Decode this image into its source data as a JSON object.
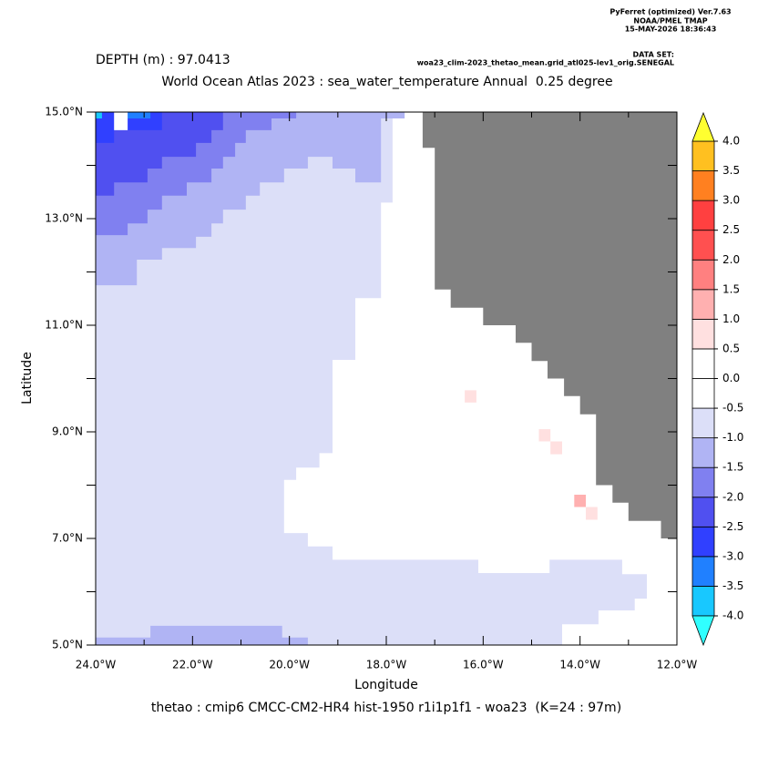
{
  "chart_data": {
    "type": "map",
    "header": [
      "PyFerret (optimized) Ver.7.63",
      "NOAA/PMEL TMAP",
      "15-MAY-2026 18:36:43"
    ],
    "dataset_label": "DATA SET:",
    "dataset": "woa23_clim-2023_thetao_mean.grid_atl025-lev1_orig.SENEGAL",
    "depth_label": "DEPTH (m) : 97.0413",
    "title": "World Ocean Atlas 2023 : sea_water_temperature Annual  0.25 degree",
    "xlabel": "Longitude",
    "ylabel": "Latitude",
    "footer": "thetao : cmip6 CMCC-CM2-HR4 hist-1950 r1i1p1f1 - woa23  (K=24 : 97m)",
    "xlim": [
      -24,
      -12
    ],
    "ylim": [
      5,
      15
    ],
    "xticks": [
      {
        "value": -24,
        "label": "24.0°W"
      },
      {
        "value": -22,
        "label": "22.0°W"
      },
      {
        "value": -20,
        "label": "20.0°W"
      },
      {
        "value": -18,
        "label": "18.0°W"
      },
      {
        "value": -16,
        "label": "16.0°W"
      },
      {
        "value": -14,
        "label": "14.0°W"
      },
      {
        "value": -12,
        "label": "12.0°W"
      }
    ],
    "xminorticks": [
      -23,
      -21,
      -19,
      -17,
      -15,
      -13
    ],
    "yticks": [
      {
        "value": 5,
        "label": "5.0°N"
      },
      {
        "value": 7,
        "label": "7.0°N"
      },
      {
        "value": 9,
        "label": "9.0°N"
      },
      {
        "value": 11,
        "label": "11.0°N"
      },
      {
        "value": 13,
        "label": "13.0°N"
      },
      {
        "value": 15,
        "label": "15.0°N"
      }
    ],
    "yminorticks": [
      6,
      8,
      10,
      12,
      14
    ],
    "colorbar": {
      "levels": [
        {
          "value": -4,
          "label": "-4.0"
        },
        {
          "value": -3.5,
          "label": "-3.5"
        },
        {
          "value": -3,
          "label": "-3.0"
        },
        {
          "value": -2.5,
          "label": "-2.5"
        },
        {
          "value": -2,
          "label": "-2.0"
        },
        {
          "value": -1.5,
          "label": "-1.5"
        },
        {
          "value": -1,
          "label": "-1.0"
        },
        {
          "value": -0.5,
          "label": "-0.5"
        },
        {
          "value": 0,
          "label": "0.0"
        },
        {
          "value": 0.5,
          "label": "0.5"
        },
        {
          "value": 1,
          "label": "1.0"
        },
        {
          "value": 1.5,
          "label": "1.5"
        },
        {
          "value": 2,
          "label": "2.0"
        },
        {
          "value": 2.5,
          "label": "2.5"
        },
        {
          "value": 3,
          "label": "3.0"
        },
        {
          "value": 3.5,
          "label": "3.5"
        },
        {
          "value": 4,
          "label": "4.0"
        }
      ],
      "colors": [
        "#18c8ff",
        "#2080ff",
        "#3040ff",
        "#5050f0",
        "#8080f0",
        "#b0b4f4",
        "#dcdff8",
        "#ffffff",
        "#ffffff",
        "#ffe0e0",
        "#ffb0b0",
        "#ff8080",
        "#ff5050",
        "#ff4040",
        "#ff8020",
        "#ffc020"
      ],
      "under_color": "#30ffff",
      "over_color": "#ffff30"
    },
    "regions": [
      {
        "value": -0.75,
        "lon": [
          -24,
          -12,
          -12,
          -24
        ],
        "lat": [
          5,
          5,
          15,
          15
        ]
      },
      {
        "value": -1.25,
        "lon": [
          -24,
          -17.62,
          -17.62,
          -18.11,
          -18.11,
          -18.64,
          -18.64,
          -19.11,
          -19.11,
          -19.62,
          -19.62,
          -20.11,
          -20.11,
          -20.61,
          -20.61,
          -20.9,
          -20.9,
          -21.37,
          -21.37,
          -21.61,
          -21.61,
          -21.93,
          -21.93,
          -22.63,
          -22.63,
          -23.15,
          -23.15,
          -24
        ],
        "lat": [
          15,
          15,
          14.88,
          14.88,
          13.68,
          13.68,
          13.94,
          13.94,
          14.16,
          14.16,
          13.94,
          13.94,
          13.68,
          13.68,
          13.43,
          13.43,
          13.17,
          13.17,
          12.91,
          12.91,
          12.66,
          12.66,
          12.45,
          12.45,
          12.23,
          12.23,
          11.75,
          11.75
        ]
      },
      {
        "value": -1.75,
        "lon": [
          -24,
          -19.86,
          -19.86,
          -20.37,
          -20.37,
          -20.9,
          -20.9,
          -21.12,
          -21.12,
          -21.37,
          -21.37,
          -21.61,
          -21.61,
          -22.12,
          -22.12,
          -22.63,
          -22.63,
          -22.93,
          -22.93,
          -23.34,
          -23.34,
          -24
        ],
        "lat": [
          15,
          15,
          14.88,
          14.88,
          14.66,
          14.66,
          14.42,
          14.42,
          14.16,
          14.16,
          13.94,
          13.94,
          13.68,
          13.68,
          13.43,
          13.43,
          13.17,
          13.17,
          12.91,
          12.91,
          12.69,
          12.69
        ]
      },
      {
        "value": -2.25,
        "lon": [
          -24,
          -21.37,
          -21.37,
          -21.61,
          -21.61,
          -21.93,
          -21.93,
          -22.63,
          -22.63,
          -22.93,
          -22.93,
          -23.62,
          -23.62,
          -24
        ],
        "lat": [
          15,
          15,
          14.66,
          14.66,
          14.42,
          14.42,
          14.16,
          14.16,
          13.94,
          13.94,
          13.68,
          13.68,
          13.43,
          13.43
        ]
      },
      {
        "value": -2.75,
        "lon": [
          -24,
          -22.63,
          -22.63,
          -23.62,
          -23.62,
          -24
        ],
        "lat": [
          15,
          15,
          14.66,
          14.66,
          14.42,
          14.42
        ]
      },
      {
        "value": -3.25,
        "lon": [
          -23.34,
          -22.87,
          -22.87,
          -23.34
        ],
        "lat": [
          15,
          15,
          14.88,
          14.88
        ]
      },
      {
        "value": -3.75,
        "lon": [
          -24,
          -23.87,
          -23.87,
          -24
        ],
        "lat": [
          15,
          15,
          14.88,
          14.88
        ]
      },
      {
        "value": -0.25,
        "lon": [
          -23.62,
          -23.34,
          -23.34,
          -23.62
        ],
        "lat": [
          15,
          15,
          14.66,
          14.66
        ]
      },
      {
        "value": -1.25,
        "lon": [
          -24,
          -19.62,
          -19.62,
          -20.15,
          -20.15,
          -22.87,
          -22.87,
          -24
        ],
        "lat": [
          5,
          5,
          5.14,
          5.14,
          5.36,
          5.36,
          5.14,
          5.14
        ]
      },
      {
        "value": -0.25,
        "lon": [
          -17.62,
          -17.62,
          -17.87,
          -17.87,
          -18.11,
          -18.11,
          -18.64,
          -18.64,
          -19.11,
          -19.11,
          -19.38,
          -19.38,
          -19.86,
          -19.86,
          -20.11,
          -20.11,
          -19.62,
          -19.62,
          -19.11,
          -19.11,
          -16.1,
          -16.1,
          -14.63,
          -14.63,
          -13.13,
          -13.13,
          -12.62,
          -12.62,
          -12.87,
          -12.87,
          -13.62,
          -13.62,
          -14.37,
          -14.37,
          -12,
          -12
        ],
        "lat": [
          15,
          14.88,
          14.88,
          13.3,
          13.3,
          11.51,
          11.51,
          10.35,
          10.35,
          8.6,
          8.6,
          8.33,
          8.33,
          8.1,
          8.1,
          7.1,
          7.1,
          6.85,
          6.85,
          6.6,
          6.6,
          6.35,
          6.35,
          6.6,
          6.6,
          6.33,
          6.33,
          5.87,
          5.87,
          5.65,
          5.65,
          5.39,
          5.39,
          5,
          5,
          15
        ]
      },
      {
        "value": 0.75,
        "lon": [
          -16.38,
          -16.14,
          -16.14,
          -16.38
        ],
        "lat": [
          9.55,
          9.55,
          9.78,
          9.78
        ]
      },
      {
        "value": 0.75,
        "lon": [
          -14.85,
          -14.61,
          -14.61,
          -14.85
        ],
        "lat": [
          8.82,
          8.82,
          9.05,
          9.05
        ]
      },
      {
        "value": 0.75,
        "lon": [
          -14.61,
          -14.37,
          -14.37,
          -14.61
        ],
        "lat": [
          8.58,
          8.58,
          8.82,
          8.82
        ]
      },
      {
        "value": 1.25,
        "lon": [
          -14.12,
          -13.88,
          -13.88,
          -14.12
        ],
        "lat": [
          7.59,
          7.59,
          7.82,
          7.82
        ]
      },
      {
        "value": 0.75,
        "lon": [
          -13.88,
          -13.64,
          -13.64,
          -13.88
        ],
        "lat": [
          7.35,
          7.35,
          7.59,
          7.59
        ]
      }
    ],
    "land": {
      "color": "#808080",
      "lon": [
        -17.25,
        -12,
        -12,
        -12.33,
        -12.33,
        -13,
        -13,
        -13.33,
        -13.33,
        -13.67,
        -13.67,
        -14,
        -14,
        -14.33,
        -14.33,
        -14.67,
        -14.67,
        -15,
        -15,
        -15.33,
        -15.33,
        -16,
        -16,
        -16.67,
        -16.67,
        -17,
        -17,
        -17.25
      ],
      "lat": [
        15,
        15,
        7,
        7,
        7.33,
        7.33,
        7.67,
        7.67,
        8,
        8,
        9.33,
        9.33,
        9.67,
        9.67,
        10,
        10,
        10.33,
        10.33,
        10.67,
        10.67,
        11,
        11,
        11.33,
        11.33,
        11.67,
        11.67,
        14.33,
        14.33
      ]
    }
  }
}
